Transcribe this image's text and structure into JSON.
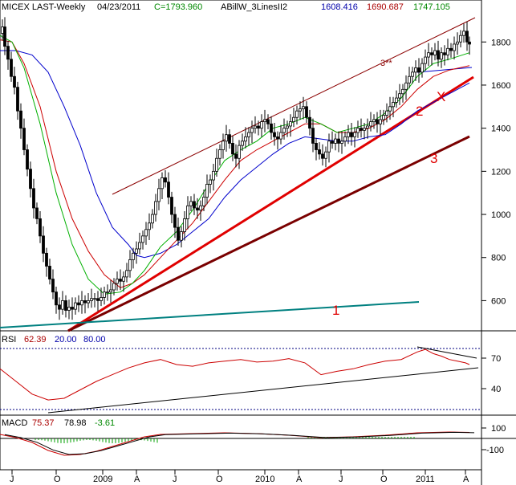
{
  "header": {
    "symbol": "MICEX LAST-Weekly",
    "date": "04/23/2011",
    "close": "C=1793.960",
    "indicator": "ABillW_3LinesII2",
    "values": [
      "1608.416",
      "1690.687",
      "1747.105"
    ]
  },
  "colors": {
    "price": "#000000",
    "ma_blue": "#0000cc",
    "ma_red": "#cc0000",
    "ma_green": "#00b000",
    "trend_red": "#e00000",
    "trend_dark": "#7a0000",
    "trend_teal": "#008080",
    "channel": "#8b0000",
    "header_blue": "#0000aa",
    "header_green": "#008800",
    "header_red": "#aa0000"
  },
  "annotations": [
    "1",
    "2",
    "3",
    "3**",
    "X"
  ],
  "rsi": {
    "label": "RSI",
    "value": "62.39",
    "lower": "20.00",
    "upper": "80.00",
    "ticks": [
      "70",
      "40"
    ]
  },
  "macd": {
    "label": "MACD",
    "v1": "75.37",
    "v2": "78.98",
    "v3": "-3.61",
    "ticks": [
      "100",
      "-100"
    ]
  },
  "chart_data": [
    {
      "type": "candlestick",
      "title": "MICEX LAST-Weekly",
      "y_ticks": [
        "1800",
        "1600",
        "1400",
        "1200",
        "1000",
        "800",
        "600"
      ],
      "x_ticks": [
        "J",
        "O",
        "2009",
        "A",
        "J",
        "O",
        "2010",
        "A",
        "J",
        "O",
        "2011",
        "A"
      ],
      "ylim": [
        460,
        1950
      ],
      "price_path": [
        [
          0,
          1840
        ],
        [
          3,
          1870
        ],
        [
          6,
          1780
        ],
        [
          10,
          1720
        ],
        [
          14,
          1640
        ],
        [
          18,
          1590
        ],
        [
          22,
          1480
        ],
        [
          26,
          1400
        ],
        [
          30,
          1300
        ],
        [
          34,
          1210
        ],
        [
          38,
          1120
        ],
        [
          42,
          1030
        ],
        [
          46,
          980
        ],
        [
          50,
          900
        ],
        [
          54,
          820
        ],
        [
          58,
          760
        ],
        [
          62,
          700
        ],
        [
          66,
          640
        ],
        [
          70,
          580
        ],
        [
          74,
          560
        ],
        [
          78,
          600
        ],
        [
          82,
          555
        ],
        [
          86,
          570
        ],
        [
          90,
          560
        ],
        [
          94,
          590
        ],
        [
          98,
          580
        ],
        [
          102,
          600
        ],
        [
          106,
          590
        ],
        [
          110,
          600
        ],
        [
          114,
          610
        ],
        [
          118,
          610
        ],
        [
          122,
          600
        ],
        [
          126,
          615
        ],
        [
          130,
          640
        ],
        [
          134,
          640
        ],
        [
          138,
          650
        ],
        [
          142,
          680
        ],
        [
          146,
          700
        ],
        [
          150,
          690
        ],
        [
          154,
          710
        ],
        [
          158,
          740
        ],
        [
          162,
          790
        ],
        [
          166,
          820
        ],
        [
          170,
          840
        ],
        [
          174,
          870
        ],
        [
          178,
          900
        ],
        [
          182,
          930
        ],
        [
          186,
          960
        ],
        [
          190,
          1000
        ],
        [
          194,
          1060
        ],
        [
          198,
          1120
        ],
        [
          202,
          1170
        ],
        [
          206,
          1150
        ],
        [
          210,
          1080
        ],
        [
          214,
          1000
        ],
        [
          218,
          940
        ],
        [
          222,
          880
        ],
        [
          226,
          920
        ],
        [
          230,
          980
        ],
        [
          234,
          1040
        ],
        [
          238,
          1060
        ],
        [
          242,
          1030
        ],
        [
          246,
          1020
        ],
        [
          250,
          1040
        ],
        [
          254,
          1080
        ],
        [
          258,
          1140
        ],
        [
          262,
          1160
        ],
        [
          266,
          1200
        ],
        [
          270,
          1260
        ],
        [
          274,
          1300
        ],
        [
          278,
          1340
        ],
        [
          282,
          1370
        ],
        [
          286,
          1330
        ],
        [
          290,
          1280
        ],
        [
          294,
          1260
        ],
        [
          298,
          1320
        ],
        [
          302,
          1340
        ],
        [
          306,
          1360
        ],
        [
          310,
          1380
        ],
        [
          314,
          1400
        ],
        [
          318,
          1410
        ],
        [
          322,
          1400
        ],
        [
          326,
          1430
        ],
        [
          330,
          1440
        ],
        [
          334,
          1420
        ],
        [
          338,
          1380
        ],
        [
          342,
          1360
        ],
        [
          346,
          1350
        ],
        [
          350,
          1380
        ],
        [
          354,
          1400
        ],
        [
          358,
          1410
        ],
        [
          362,
          1430
        ],
        [
          366,
          1450
        ],
        [
          370,
          1480
        ],
        [
          374,
          1490
        ],
        [
          378,
          1500
        ],
        [
          382,
          1450
        ],
        [
          386,
          1400
        ],
        [
          390,
          1330
        ],
        [
          394,
          1300
        ],
        [
          398,
          1280
        ],
        [
          402,
          1260
        ],
        [
          406,
          1290
        ],
        [
          410,
          1340
        ],
        [
          414,
          1330
        ],
        [
          418,
          1350
        ],
        [
          422,
          1330
        ],
        [
          426,
          1340
        ],
        [
          430,
          1360
        ],
        [
          434,
          1380
        ],
        [
          438,
          1360
        ],
        [
          442,
          1380
        ],
        [
          446,
          1400
        ],
        [
          450,
          1390
        ],
        [
          454,
          1400
        ],
        [
          458,
          1410
        ],
        [
          462,
          1430
        ],
        [
          466,
          1440
        ],
        [
          470,
          1420
        ],
        [
          474,
          1440
        ],
        [
          478,
          1460
        ],
        [
          482,
          1480
        ],
        [
          486,
          1500
        ],
        [
          490,
          1520
        ],
        [
          494,
          1540
        ],
        [
          498,
          1560
        ],
        [
          502,
          1580
        ],
        [
          506,
          1610
        ],
        [
          510,
          1640
        ],
        [
          514,
          1660
        ],
        [
          518,
          1680
        ],
        [
          522,
          1660
        ],
        [
          526,
          1700
        ],
        [
          530,
          1730
        ],
        [
          534,
          1750
        ],
        [
          538,
          1740
        ],
        [
          542,
          1760
        ],
        [
          546,
          1720
        ],
        [
          550,
          1750
        ],
        [
          554,
          1740
        ],
        [
          558,
          1770
        ],
        [
          562,
          1760
        ],
        [
          566,
          1790
        ],
        [
          570,
          1800
        ],
        [
          574,
          1830
        ],
        [
          578,
          1850
        ],
        [
          582,
          1800
        ],
        [
          585,
          1790
        ]
      ],
      "series": [
        {
          "name": "1608.416",
          "color": "#0000cc",
          "points": [
            [
              0,
              1760
            ],
            [
              20,
              1760
            ],
            [
              40,
              1740
            ],
            [
              60,
              1660
            ],
            [
              80,
              1500
            ],
            [
              100,
              1320
            ],
            [
              120,
              1100
            ],
            [
              140,
              940
            ],
            [
              160,
              860
            ],
            [
              170,
              810
            ],
            [
              180,
              800
            ],
            [
              200,
              820
            ],
            [
              220,
              860
            ],
            [
              240,
              920
            ],
            [
              260,
              980
            ],
            [
              280,
              1080
            ],
            [
              300,
              1160
            ],
            [
              320,
              1220
            ],
            [
              340,
              1280
            ],
            [
              360,
              1330
            ],
            [
              380,
              1360
            ],
            [
              400,
              1350
            ],
            [
              420,
              1340
            ],
            [
              440,
              1340
            ],
            [
              460,
              1360
            ],
            [
              480,
              1370
            ],
            [
              500,
              1420
            ],
            [
              520,
              1480
            ],
            [
              540,
              1520
            ],
            [
              560,
              1560
            ],
            [
              585,
              1610
            ]
          ]
        },
        {
          "name": "1690.687",
          "color": "#cc0000",
          "points": [
            [
              0,
              1810
            ],
            [
              15,
              1800
            ],
            [
              30,
              1700
            ],
            [
              50,
              1500
            ],
            [
              70,
              1200
            ],
            [
              90,
              980
            ],
            [
              110,
              830
            ],
            [
              130,
              720
            ],
            [
              150,
              660
            ],
            [
              165,
              680
            ],
            [
              180,
              720
            ],
            [
              200,
              800
            ],
            [
              220,
              880
            ],
            [
              240,
              960
            ],
            [
              260,
              1060
            ],
            [
              280,
              1160
            ],
            [
              300,
              1250
            ],
            [
              320,
              1300
            ],
            [
              340,
              1340
            ],
            [
              360,
              1380
            ],
            [
              380,
              1420
            ],
            [
              400,
              1420
            ],
            [
              420,
              1380
            ],
            [
              440,
              1380
            ],
            [
              460,
              1400
            ],
            [
              480,
              1440
            ],
            [
              500,
              1500
            ],
            [
              520,
              1580
            ],
            [
              540,
              1640
            ],
            [
              560,
              1670
            ],
            [
              585,
              1690
            ]
          ]
        },
        {
          "name": "1747.105",
          "color": "#00b000",
          "points": [
            [
              0,
              1830
            ],
            [
              15,
              1800
            ],
            [
              30,
              1680
            ],
            [
              50,
              1420
            ],
            [
              70,
              1100
            ],
            [
              90,
              860
            ],
            [
              110,
              700
            ],
            [
              130,
              630
            ],
            [
              150,
              640
            ],
            [
              165,
              680
            ],
            [
              180,
              740
            ],
            [
              200,
              850
            ],
            [
              220,
              920
            ],
            [
              240,
              1020
            ],
            [
              260,
              1140
            ],
            [
              280,
              1250
            ],
            [
              300,
              1300
            ],
            [
              320,
              1340
            ],
            [
              340,
              1400
            ],
            [
              360,
              1420
            ],
            [
              380,
              1450
            ],
            [
              400,
              1420
            ],
            [
              420,
              1380
            ],
            [
              440,
              1400
            ],
            [
              460,
              1420
            ],
            [
              480,
              1470
            ],
            [
              500,
              1540
            ],
            [
              520,
              1640
            ],
            [
              540,
              1700
            ],
            [
              560,
              1720
            ],
            [
              585,
              1750
            ]
          ]
        }
      ]
    },
    {
      "type": "line",
      "title": "RSI",
      "ylim": [
        0,
        100
      ],
      "y_ticks": [
        70,
        40
      ],
      "points": [
        [
          0,
          55
        ],
        [
          20,
          40
        ],
        [
          40,
          25
        ],
        [
          60,
          18
        ],
        [
          80,
          20
        ],
        [
          100,
          30
        ],
        [
          120,
          40
        ],
        [
          140,
          48
        ],
        [
          160,
          56
        ],
        [
          180,
          62
        ],
        [
          200,
          66
        ],
        [
          220,
          60
        ],
        [
          240,
          58
        ],
        [
          260,
          62
        ],
        [
          280,
          64
        ],
        [
          300,
          66
        ],
        [
          320,
          63
        ],
        [
          340,
          64
        ],
        [
          360,
          67
        ],
        [
          380,
          62
        ],
        [
          400,
          48
        ],
        [
          420,
          52
        ],
        [
          440,
          55
        ],
        [
          460,
          60
        ],
        [
          480,
          64
        ],
        [
          500,
          66
        ],
        [
          520,
          75
        ],
        [
          530,
          78
        ],
        [
          540,
          73
        ],
        [
          550,
          70
        ],
        [
          560,
          66
        ],
        [
          570,
          64
        ],
        [
          580,
          62
        ],
        [
          585,
          60
        ]
      ]
    },
    {
      "type": "line",
      "title": "MACD",
      "ylim": [
        -300,
        200
      ],
      "y_ticks": [
        100,
        -100
      ],
      "points": [
        [
          0,
          50
        ],
        [
          20,
          10
        ],
        [
          40,
          -50
        ],
        [
          60,
          -150
        ],
        [
          80,
          -210
        ],
        [
          100,
          -200
        ],
        [
          120,
          -160
        ],
        [
          140,
          -100
        ],
        [
          160,
          -40
        ],
        [
          180,
          20
        ],
        [
          200,
          50
        ],
        [
          240,
          60
        ],
        [
          280,
          70
        ],
        [
          320,
          60
        ],
        [
          360,
          40
        ],
        [
          400,
          10
        ],
        [
          440,
          20
        ],
        [
          480,
          40
        ],
        [
          520,
          70
        ],
        [
          560,
          80
        ],
        [
          585,
          75
        ]
      ]
    }
  ]
}
